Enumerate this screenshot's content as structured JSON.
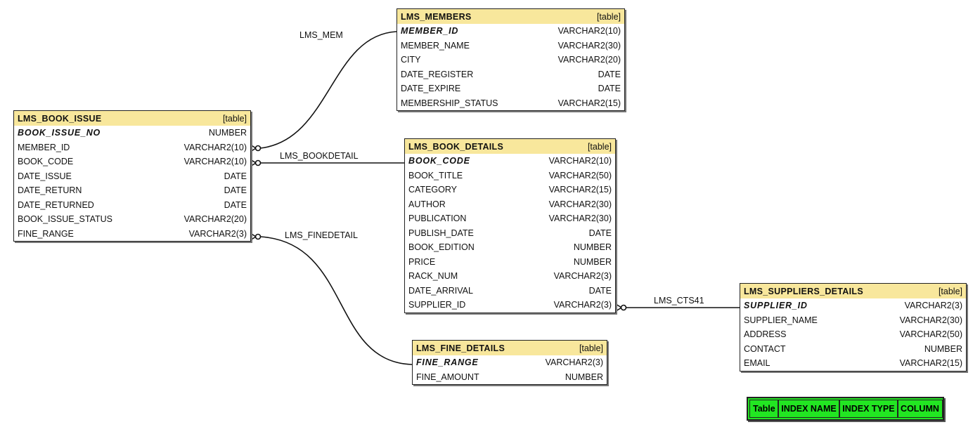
{
  "tables": [
    {
      "id": "book_issue",
      "name": "LMS_BOOK_ISSUE",
      "kind": "[table]",
      "columns": [
        {
          "name": "BOOK_ISSUE_NO",
          "type": "NUMBER",
          "pk": true
        },
        {
          "name": "MEMBER_ID",
          "type": "VARCHAR2(10)"
        },
        {
          "name": "BOOK_CODE",
          "type": "VARCHAR2(10)"
        },
        {
          "name": "DATE_ISSUE",
          "type": "DATE"
        },
        {
          "name": "DATE_RETURN",
          "type": "DATE"
        },
        {
          "name": "DATE_RETURNED",
          "type": "DATE"
        },
        {
          "name": "BOOK_ISSUE_STATUS",
          "type": "VARCHAR2(20)"
        },
        {
          "name": "FINE_RANGE",
          "type": "VARCHAR2(3)"
        }
      ]
    },
    {
      "id": "members",
      "name": "LMS_MEMBERS",
      "kind": "[table]",
      "columns": [
        {
          "name": "MEMBER_ID",
          "type": "VARCHAR2(10)",
          "pk": true
        },
        {
          "name": "MEMBER_NAME",
          "type": "VARCHAR2(30)"
        },
        {
          "name": "CITY",
          "type": "VARCHAR2(20)"
        },
        {
          "name": "DATE_REGISTER",
          "type": "DATE"
        },
        {
          "name": "DATE_EXPIRE",
          "type": "DATE"
        },
        {
          "name": "MEMBERSHIP_STATUS",
          "type": "VARCHAR2(15)"
        }
      ]
    },
    {
      "id": "book_details",
      "name": "LMS_BOOK_DETAILS",
      "kind": "[table]",
      "columns": [
        {
          "name": "BOOK_CODE",
          "type": "VARCHAR2(10)",
          "pk": true
        },
        {
          "name": "BOOK_TITLE",
          "type": "VARCHAR2(50)"
        },
        {
          "name": "CATEGORY",
          "type": "VARCHAR2(15)"
        },
        {
          "name": "AUTHOR",
          "type": "VARCHAR2(30)"
        },
        {
          "name": "PUBLICATION",
          "type": "VARCHAR2(30)"
        },
        {
          "name": "PUBLISH_DATE",
          "type": "DATE"
        },
        {
          "name": "BOOK_EDITION",
          "type": "NUMBER"
        },
        {
          "name": "PRICE",
          "type": "NUMBER"
        },
        {
          "name": "RACK_NUM",
          "type": "VARCHAR2(3)"
        },
        {
          "name": "DATE_ARRIVAL",
          "type": "DATE"
        },
        {
          "name": "SUPPLIER_ID",
          "type": "VARCHAR2(3)"
        }
      ]
    },
    {
      "id": "fine_details",
      "name": "LMS_FINE_DETAILS",
      "kind": "[table]",
      "columns": [
        {
          "name": "FINE_RANGE",
          "type": "VARCHAR2(3)",
          "pk": true
        },
        {
          "name": "FINE_AMOUNT",
          "type": "NUMBER"
        }
      ]
    },
    {
      "id": "suppliers",
      "name": "LMS_SUPPLIERS_DETAILS",
      "kind": "[table]",
      "columns": [
        {
          "name": "SUPPLIER_ID",
          "type": "VARCHAR2(3)",
          "pk": true
        },
        {
          "name": "SUPPLIER_NAME",
          "type": "VARCHAR2(30)"
        },
        {
          "name": "ADDRESS",
          "type": "VARCHAR2(50)"
        },
        {
          "name": "CONTACT",
          "type": "NUMBER"
        },
        {
          "name": "EMAIL",
          "type": "VARCHAR2(15)"
        }
      ]
    }
  ],
  "relations": [
    {
      "name": "LMS_MEM",
      "from": "LMS_BOOK_ISSUE.MEMBER_ID",
      "to": "LMS_MEMBERS.MEMBER_ID"
    },
    {
      "name": "LMS_BOOKDETAIL",
      "from": "LMS_BOOK_ISSUE.BOOK_CODE",
      "to": "LMS_BOOK_DETAILS.BOOK_CODE"
    },
    {
      "name": "LMS_FINEDETAIL",
      "from": "LMS_BOOK_ISSUE.FINE_RANGE",
      "to": "LMS_FINE_DETAILS.FINE_RANGE"
    },
    {
      "name": "LMS_CTS41",
      "from": "LMS_BOOK_DETAILS.SUPPLIER_ID",
      "to": "LMS_SUPPLIERS_DETAILS.SUPPLIER_ID"
    }
  ],
  "legend": {
    "headers": [
      "Table",
      "INDEX NAME",
      "INDEX TYPE",
      "COLUMN"
    ],
    "color": "#22e622"
  },
  "colors": {
    "header": "#f8e79c"
  }
}
